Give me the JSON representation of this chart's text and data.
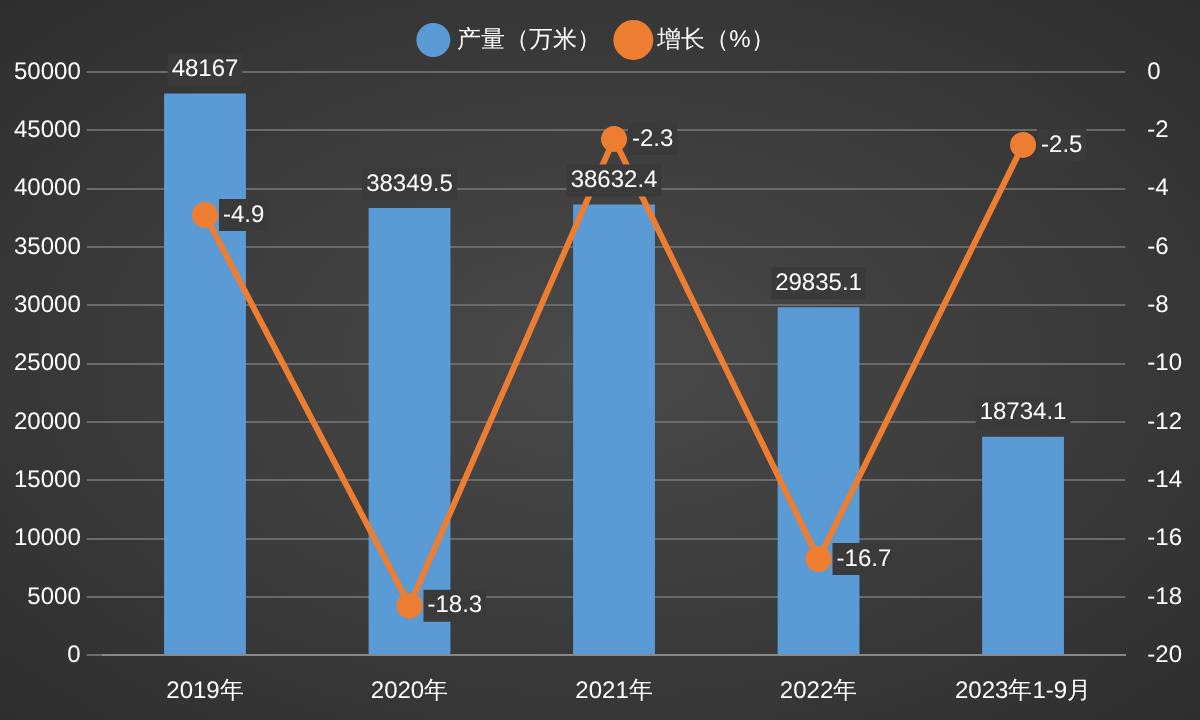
{
  "chart_data": {
    "type": "bar",
    "categories": [
      "2019年",
      "2020年",
      "2021年",
      "2022年",
      "2023年1-9月"
    ],
    "series": [
      {
        "name": "产量（万米）",
        "color": "#5b9bd5",
        "values": [
          48167,
          38349.5,
          38632.4,
          29835.1,
          18734.1
        ]
      },
      {
        "name": "增长（%）",
        "type": "line",
        "axis": "y2",
        "color": "#ed7d31",
        "values": [
          -4.9,
          -18.3,
          -2.3,
          -16.7,
          -2.5
        ]
      }
    ],
    "ylim": [
      0,
      50000
    ],
    "yticks": [
      0,
      5000,
      10000,
      15000,
      20000,
      25000,
      30000,
      35000,
      40000,
      45000,
      50000
    ],
    "y2lim": [
      -20,
      0
    ],
    "y2ticks": [
      -20,
      -18,
      -16,
      -14,
      -12,
      -10,
      -8,
      -6,
      -4,
      -2,
      0
    ],
    "grid": "y",
    "legend": "top",
    "marker": "circle",
    "data_labels": true
  }
}
